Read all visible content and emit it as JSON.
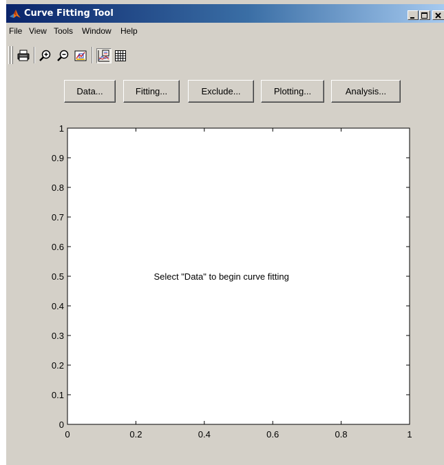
{
  "window": {
    "title": "Curve Fitting Tool",
    "title_icon": "matlab-logo-icon",
    "buttons": [
      "minimize-icon",
      "maximize-icon",
      "close-icon"
    ]
  },
  "menu": {
    "items": [
      "File",
      "View",
      "Tools",
      "Window",
      "Help"
    ]
  },
  "toolbar": {
    "buttons": [
      "print-icon",
      "zoom-in-icon",
      "zoom-out-icon",
      "data-cursor-icon",
      "legend-icon",
      "grid-icon"
    ]
  },
  "actions": {
    "data_label": "Data...",
    "fitting_label": "Fitting...",
    "exclude_label": "Exclude...",
    "plotting_label": "Plotting...",
    "analysis_label": "Analysis..."
  },
  "plot": {
    "message": "Select \"Data\" to begin curve fitting"
  },
  "chart_data": {
    "type": "line",
    "series": [],
    "xlim": [
      0,
      1
    ],
    "ylim": [
      0,
      1
    ],
    "xticks": [
      "0",
      "0.2",
      "0.4",
      "0.6",
      "0.8",
      "1"
    ],
    "yticks": [
      "0",
      "0.1",
      "0.2",
      "0.3",
      "0.4",
      "0.5",
      "0.6",
      "0.7",
      "0.8",
      "0.9",
      "1"
    ],
    "grid": false,
    "annotation": "Select \"Data\" to begin curve fitting"
  },
  "colors": {
    "panel": "#d4d0c8",
    "title_active": "#0a246a",
    "plot_background": "#ffffff"
  }
}
